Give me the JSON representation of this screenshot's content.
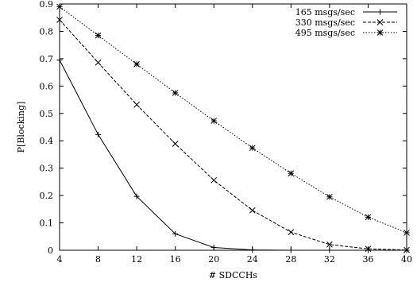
{
  "chart_data": {
    "type": "line",
    "title": "",
    "xlabel": "# SDCCHs",
    "ylabel": "P[Blocking]",
    "x": [
      4,
      8,
      12,
      16,
      20,
      24,
      28,
      32,
      36,
      40
    ],
    "xlim": [
      4,
      40
    ],
    "ylim": [
      0,
      0.9
    ],
    "xticks": [
      "4",
      "8",
      "12",
      "16",
      "20",
      "24",
      "28",
      "32",
      "36",
      "40"
    ],
    "yticks": [
      "0",
      "0.1",
      "0.2",
      "0.3",
      "0.4",
      "0.5",
      "0.6",
      "0.7",
      "0.8",
      "0.9"
    ],
    "grid": false,
    "legend_position": "top-right",
    "series": [
      {
        "name": "165 msgs/sec",
        "line_style": "solid",
        "marker": "plus",
        "values": [
          0.695,
          0.423,
          0.197,
          0.06,
          0.01,
          0.001,
          0.0,
          0.0,
          0.0,
          0.0
        ]
      },
      {
        "name": "330 msgs/sec",
        "line_style": "dashed",
        "marker": "cross",
        "values": [
          0.842,
          0.686,
          0.532,
          0.389,
          0.256,
          0.146,
          0.066,
          0.021,
          0.005,
          0.001
        ]
      },
      {
        "name": "495 msgs/sec",
        "line_style": "dotted",
        "marker": "star",
        "values": [
          0.89,
          0.785,
          0.68,
          0.575,
          0.473,
          0.374,
          0.281,
          0.195,
          0.121,
          0.064
        ]
      }
    ]
  }
}
